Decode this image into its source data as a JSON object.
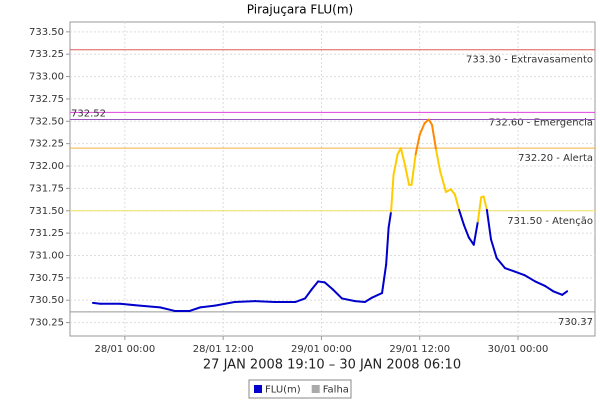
{
  "chart_data": {
    "type": "line",
    "title": "Pirajuçara FLU(m)",
    "subtitle": "27 JAN 2008 19:10 – 30 JAN 2008 06:10",
    "x": [
      -3.9,
      -3,
      -0.6,
      1.8,
      4.3,
      6.1,
      7.9,
      9.2,
      11,
      13.4,
      15.9,
      18.3,
      20.8,
      22,
      22.8,
      23.6,
      24.4,
      25.4,
      26.5,
      28.1,
      29.3,
      30.2,
      31.4,
      31.9,
      32.2,
      32.5,
      32.8,
      33.3,
      33.7,
      34.2,
      34.7,
      35,
      35.5,
      36,
      36.6,
      37.1,
      37.5,
      38,
      38.5,
      39.2,
      39.8,
      40.3,
      40.8,
      41.4,
      42,
      42.6,
      43.1,
      43.5,
      43.8,
      44.2,
      44.7,
      45.4,
      46.4,
      47.6,
      48.8,
      50.1,
      51.3,
      52.3,
      53.4,
      54
    ],
    "series": [
      {
        "name": "FLU(m)",
        "color": "#0000cc",
        "values": [
          730.47,
          730.46,
          730.46,
          730.44,
          730.42,
          730.38,
          730.38,
          730.42,
          730.44,
          730.48,
          730.49,
          730.48,
          730.48,
          730.52,
          730.62,
          730.71,
          730.7,
          730.62,
          730.52,
          730.49,
          730.48,
          730.53,
          730.58,
          730.9,
          731.31,
          731.49,
          731.9,
          732.13,
          732.2,
          732.01,
          731.79,
          731.79,
          732.13,
          732.35,
          732.48,
          732.52,
          732.46,
          732.18,
          731.94,
          731.71,
          731.74,
          731.68,
          731.51,
          731.34,
          731.2,
          731.12,
          731.38,
          731.65,
          731.66,
          731.51,
          731.18,
          730.97,
          730.86,
          730.82,
          730.78,
          730.71,
          730.66,
          730.6,
          730.56,
          730.6
        ],
        "level_colors": [
          {
            "from": 731.5,
            "color": "#ffcc00"
          },
          {
            "from": 732.2,
            "color": "#ff8800"
          }
        ]
      },
      {
        "name": "Falha",
        "color": "#aaaaaa",
        "values": [
          null,
          null,
          null,
          null,
          null,
          null,
          null,
          null,
          null,
          null,
          null,
          null,
          null,
          null,
          null,
          null,
          null,
          null,
          null,
          null,
          null,
          null,
          null,
          null,
          null,
          null,
          null,
          null,
          null,
          null,
          null,
          null,
          null,
          null,
          null,
          null,
          null,
          null,
          null,
          null,
          null,
          null,
          null,
          null,
          null,
          null,
          null,
          null,
          null,
          null,
          null,
          null,
          null,
          null,
          null,
          null,
          null,
          null,
          null,
          null
        ]
      }
    ],
    "xlim": [
      -6.7,
      57.4
    ],
    "ylim": [
      730.1,
      733.61
    ],
    "xticks": [
      {
        "value": 0,
        "label": "28/01 00:00"
      },
      {
        "value": 12,
        "label": "28/01 12:00"
      },
      {
        "value": 24,
        "label": "29/01 00:00"
      },
      {
        "value": 36,
        "label": "29/01 12:00"
      },
      {
        "value": 48,
        "label": "30/01 00:00"
      }
    ],
    "yticks": [
      730.25,
      {
        "value": 730.5,
        "label": "730.50"
      },
      730.75,
      {
        "value": 731,
        "label": "731.00"
      },
      731.25,
      {
        "value": 731.5,
        "label": "731.50"
      },
      731.75,
      {
        "value": 732,
        "label": "732.00"
      },
      732.25,
      {
        "value": 732.5,
        "label": "732.50"
      },
      732.75,
      {
        "value": 733,
        "label": "733.00"
      },
      733.25,
      {
        "value": 733.5,
        "label": "733.50"
      }
    ],
    "annotations": [
      {
        "value": 733.3,
        "label": "733.30 - Extravasamento",
        "color": "#e05a5a",
        "side": "right"
      },
      {
        "value": 732.6,
        "label": "732.60 - Emergencia",
        "color": "#e040e0",
        "side": "right"
      },
      {
        "value": 732.52,
        "label": "732.52",
        "color": "#9955bb",
        "side": "left"
      },
      {
        "value": 732.2,
        "label": "732.20 - Alerta",
        "color": "#f0b040",
        "side": "right"
      },
      {
        "value": 731.5,
        "label": "731.50 - Atenção",
        "color": "#f0e060",
        "side": "right"
      },
      {
        "value": 730.37,
        "label": "730.37",
        "color": "#999999",
        "side": "right"
      }
    ],
    "grid": true,
    "legend": "bottom"
  }
}
